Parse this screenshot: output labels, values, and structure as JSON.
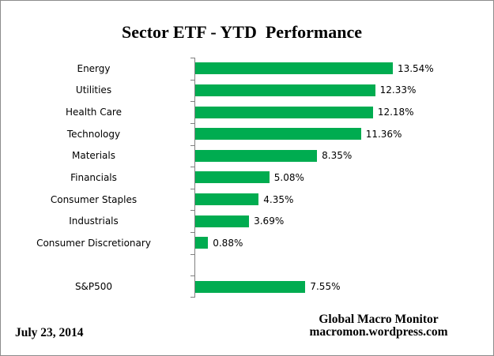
{
  "title": "Sector ETF - YTD  Performance",
  "footer": {
    "date": "July 23, 2014",
    "source_line1": "Global Macro Monitor",
    "source_line2": "macromon.wordpress.com"
  },
  "colors": {
    "bar": "#00AC50",
    "axis": "#808080",
    "border": "#8c8c8c",
    "text": "#000000"
  },
  "chart_data": {
    "type": "bar",
    "orientation": "horizontal",
    "title": "Sector ETF - YTD  Performance",
    "xlabel": "",
    "ylabel": "",
    "categories": [
      "Energy",
      "Utilities",
      "Health Care",
      "Technology",
      "Materials",
      "Financials",
      "Consumer Staples",
      "Industrials",
      "Consumer Discretionary",
      "",
      "S&P500"
    ],
    "values": [
      13.54,
      12.33,
      12.18,
      11.36,
      8.35,
      5.08,
      4.35,
      3.69,
      0.88,
      null,
      7.55
    ],
    "data_labels": [
      "13.54%",
      "12.33%",
      "12.18%",
      "11.36%",
      "8.35%",
      "5.08%",
      "4.35%",
      "3.69%",
      "0.88%",
      "",
      "7.55%"
    ],
    "value_suffix": "%",
    "xlim": [
      0,
      20.5
    ],
    "grid": false,
    "legend": false,
    "axis_scale_visible": false,
    "bar_color": "#00AC50"
  }
}
